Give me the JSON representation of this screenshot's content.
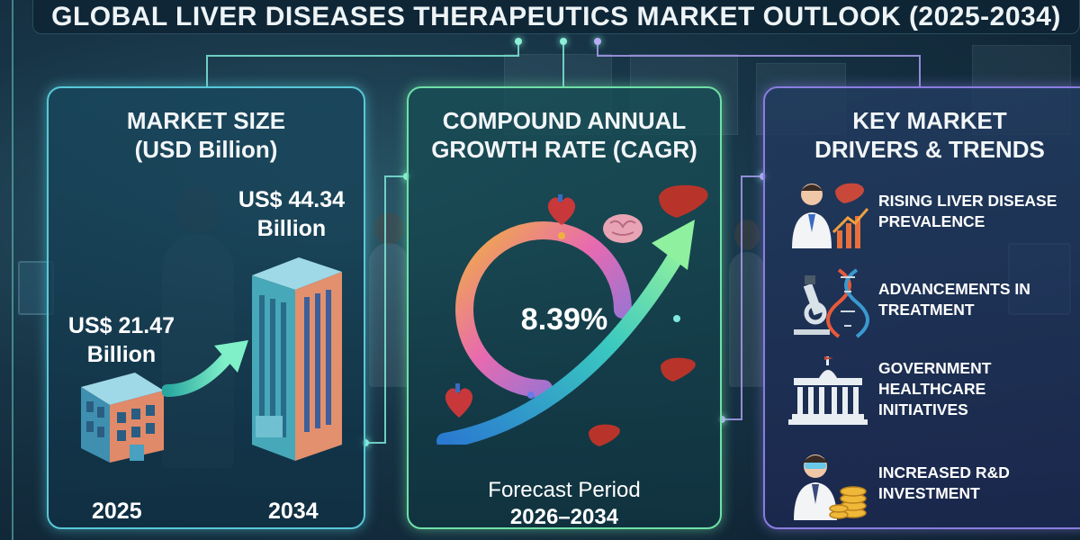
{
  "title": "GLOBAL LIVER DISEASES THERAPEUTICS MARKET OUTLOOK (2025-2034)",
  "market_size": {
    "heading_line1": "MARKET SIZE",
    "heading_line2": "(USD Billion)",
    "value_2025_line1": "US$ 21.47",
    "value_2025_line2": "Billion",
    "value_2034_line1": "US$ 44.34",
    "value_2034_line2": "Billion",
    "year_start": "2025",
    "year_end": "2034"
  },
  "cagr": {
    "heading_line1": "COMPOUND ANNUAL",
    "heading_line2": "GROWTH RATE (CAGR)",
    "value": "8.39%",
    "forecast_line1": "Forecast Period",
    "forecast_line2": "2026–2034"
  },
  "drivers": {
    "heading_line1": "KEY MARKET",
    "heading_line2": "DRIVERS & TRENDS",
    "items": [
      {
        "line1": "RISING LIVER DISEASE",
        "line2": "PREVALENCE",
        "line3": "",
        "icon": "doctor-liver-chart-icon"
      },
      {
        "line1": "ADVANCEMENTS IN",
        "line2": "TREATMENT",
        "line3": "",
        "icon": "microscope-dna-icon"
      },
      {
        "line1": "GOVERNMENT",
        "line2": "HEALTHCARE",
        "line3": "INITIATIVES",
        "icon": "government-building-icon"
      },
      {
        "line1": "INCREASED R&D",
        "line2": "INVESTMENT",
        "line3": "",
        "icon": "researcher-coins-icon"
      }
    ]
  },
  "colors": {
    "left_border": "#58c8d8",
    "mid_border": "#6fe0a6",
    "right_border": "#8a7de0",
    "title_bg": "#0e2434"
  }
}
